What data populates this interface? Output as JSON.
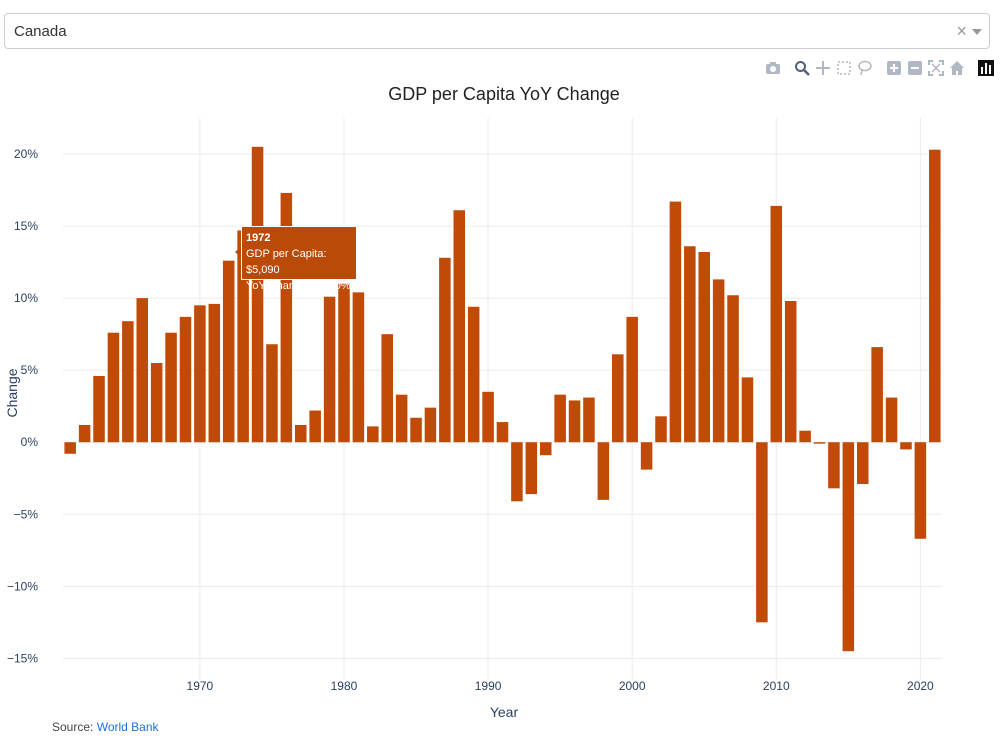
{
  "selector": {
    "value": "Canada",
    "clear_symbol": "×"
  },
  "modebar": {
    "icons": [
      "camera-icon",
      "zoom-icon",
      "pan-icon",
      "box-select-icon",
      "lasso-icon",
      "zoom-in-icon",
      "zoom-out-icon",
      "autoscale-icon",
      "reset-axes-icon",
      "plotly-logo-icon"
    ]
  },
  "source": {
    "label": "Source:",
    "link_text": "World Bank"
  },
  "colors": {
    "bar": "#c04a08",
    "grid": "#ebebeb",
    "axis_text": "#2a3f5f"
  },
  "tooltip": {
    "year": "1972",
    "line1": "GDP per Capita: $5,090",
    "line2": "YoY Change: 12.60%"
  },
  "chart_data": {
    "type": "bar",
    "title": "GDP per Capita YoY Change",
    "xlabel": "Year",
    "ylabel": "Change",
    "x": [
      1961,
      1962,
      1963,
      1964,
      1965,
      1966,
      1967,
      1968,
      1969,
      1970,
      1971,
      1972,
      1973,
      1974,
      1975,
      1976,
      1977,
      1978,
      1979,
      1980,
      1981,
      1982,
      1983,
      1984,
      1985,
      1986,
      1987,
      1988,
      1989,
      1990,
      1991,
      1992,
      1993,
      1994,
      1995,
      1996,
      1997,
      1998,
      1999,
      2000,
      2001,
      2002,
      2003,
      2004,
      2005,
      2006,
      2007,
      2008,
      2009,
      2010,
      2011,
      2012,
      2013,
      2014,
      2015,
      2016,
      2017,
      2018,
      2019,
      2020,
      2021
    ],
    "values": [
      -0.8,
      1.2,
      4.6,
      7.6,
      8.4,
      10.0,
      5.5,
      7.6,
      8.7,
      9.5,
      9.6,
      12.6,
      14.7,
      20.5,
      6.8,
      17.3,
      1.2,
      2.2,
      10.1,
      11.0,
      10.4,
      1.1,
      7.5,
      3.3,
      1.7,
      2.4,
      12.8,
      16.1,
      9.4,
      3.5,
      1.4,
      -4.1,
      -3.6,
      -0.9,
      3.3,
      2.9,
      3.1,
      -4.0,
      6.1,
      8.7,
      -1.9,
      1.8,
      16.7,
      13.6,
      13.2,
      11.3,
      10.2,
      4.5,
      -12.5,
      16.4,
      9.8,
      0.8,
      -0.1,
      -3.2,
      -14.5,
      -2.9,
      6.6,
      3.1,
      -0.5,
      -6.7,
      20.3
    ],
    "ylim": [
      -16.5,
      22.5
    ],
    "xlim": [
      1960.5,
      2021.5
    ],
    "y_ticks": [
      -15,
      -10,
      -5,
      0,
      5,
      10,
      15,
      20
    ],
    "y_tick_labels": [
      "−15%",
      "−10%",
      "−5%",
      "0%",
      "5%",
      "10%",
      "15%",
      "20%"
    ],
    "x_ticks": [
      1970,
      1980,
      1990,
      2000,
      2010,
      2020
    ],
    "x_tick_labels": [
      "1970",
      "1980",
      "1990",
      "2000",
      "2010",
      "2020"
    ],
    "grid": true
  }
}
